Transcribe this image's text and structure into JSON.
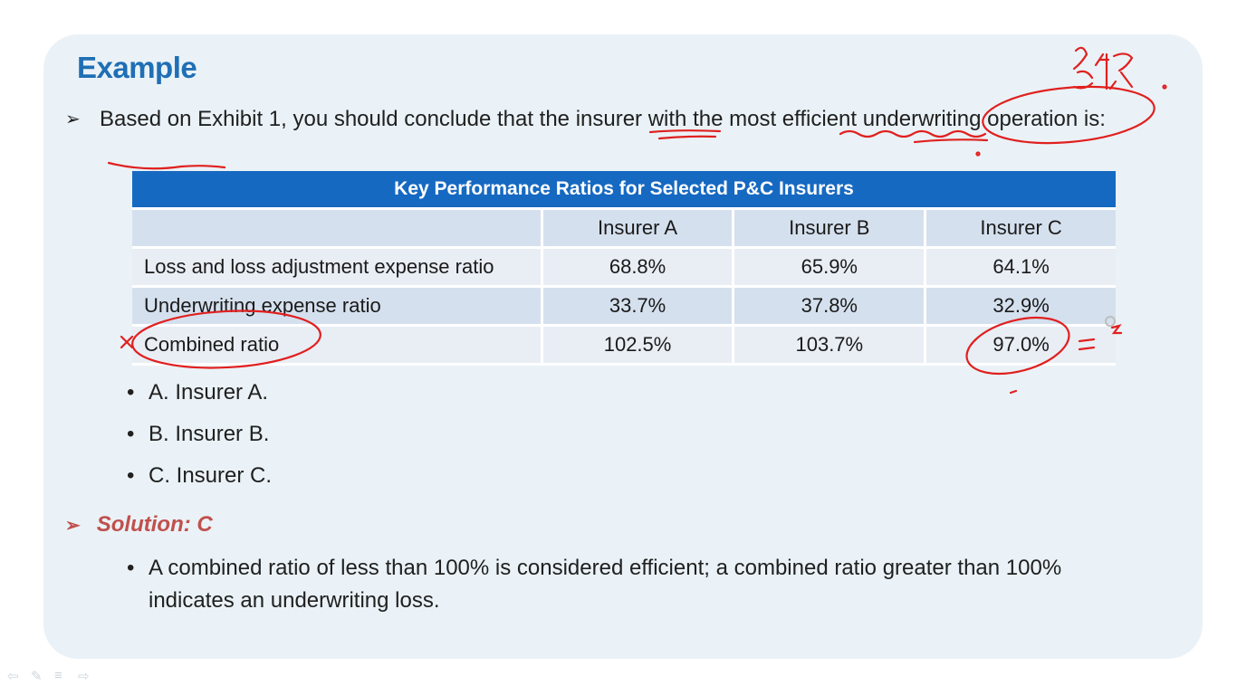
{
  "slide": {
    "title": "Example",
    "question": "Based on Exhibit 1, you should conclude that the insurer with the most efficient underwriting operation is:",
    "table": {
      "caption": "Key Performance Ratios for Selected P&C Insurers",
      "columns": [
        "",
        "Insurer A",
        "Insurer B",
        "Insurer C"
      ],
      "rows": [
        {
          "label": "Loss and loss adjustment expense ratio",
          "values": [
            "68.8%",
            "65.9%",
            "64.1%"
          ]
        },
        {
          "label": "Underwriting expense ratio",
          "values": [
            "33.7%",
            "37.8%",
            "32.9%"
          ]
        },
        {
          "label": "Combined ratio",
          "values": [
            "102.5%",
            "103.7%",
            "97.0%"
          ]
        }
      ]
    },
    "choices": [
      "A. Insurer A.",
      "B. Insurer B.",
      "C. Insurer C."
    ],
    "solution": "Solution: C",
    "explanation": "A combined ratio of less than 100% is considered efficient; a combined ratio greater than 100% indicates an underwriting loss."
  },
  "icons": {
    "bullet_arrow": "arrowhead-bullet-icon",
    "bullet_dot": "dot-bullet-icon",
    "nav": [
      "prev-arrow-icon",
      "pen-icon",
      "menu-icon",
      "next-arrow-icon"
    ]
  },
  "colors": {
    "title": "#1f6fb5",
    "table_header": "#1669c1",
    "solution": "#c0504d",
    "annotation_ink": "#e0201f",
    "slide_bg": "#eaf2f7"
  }
}
